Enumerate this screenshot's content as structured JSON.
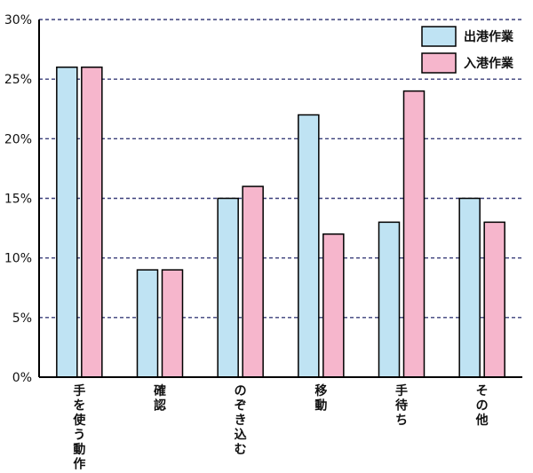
{
  "chart_data": {
    "type": "bar",
    "categories": [
      "手を使う動作",
      "確認",
      "のぞき込む",
      "移動",
      "手待ち",
      "その他"
    ],
    "series": [
      {
        "name": "出港作業",
        "values": [
          26,
          9,
          15,
          22,
          13,
          15
        ]
      },
      {
        "name": "入港作業",
        "values": [
          26,
          9,
          16,
          12,
          24,
          13
        ]
      }
    ],
    "ylim": [
      0,
      30
    ],
    "yticks": [
      0,
      5,
      10,
      15,
      20,
      25,
      30
    ],
    "ytick_labels": [
      "0%",
      "5%",
      "10%",
      "15%",
      "20%",
      "25%",
      "30%"
    ],
    "grid": "horizontal dashed",
    "legend_position": "top-right",
    "colors": {
      "出港作業": "#bfe3f3",
      "入港作業": "#f6b6cc",
      "grid": "#3a3f7a"
    }
  }
}
